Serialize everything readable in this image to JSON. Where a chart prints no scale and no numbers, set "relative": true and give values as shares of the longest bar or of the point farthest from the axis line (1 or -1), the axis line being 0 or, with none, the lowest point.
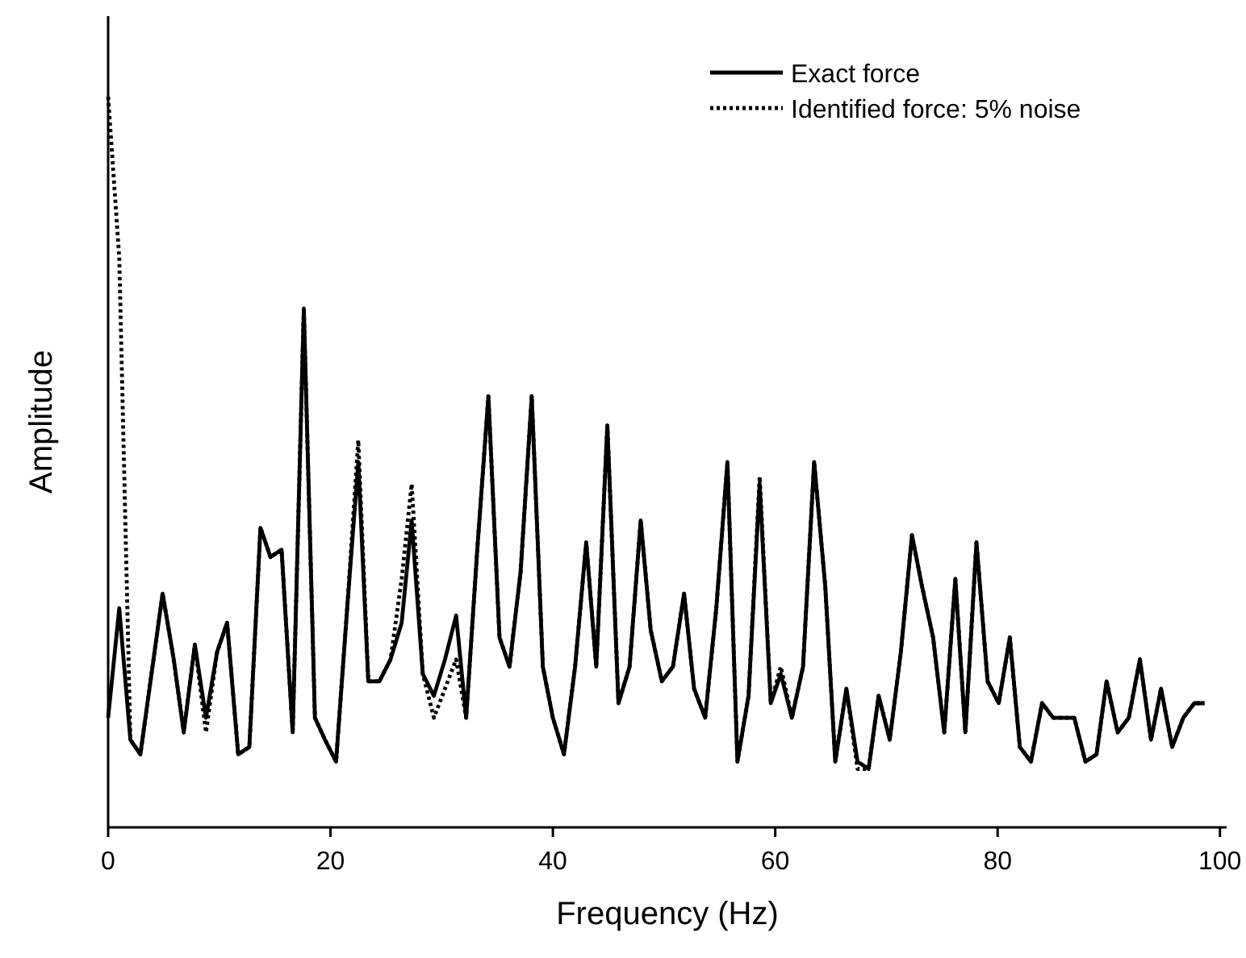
{
  "chart_data": {
    "type": "line",
    "relative": true,
    "xlabel": "Frequency (Hz)",
    "ylabel": "Amplitude",
    "xlim": [
      0,
      100.6
    ],
    "xticks": [
      0,
      20,
      40,
      60,
      80,
      100
    ],
    "tick_labels": "x",
    "legend": "top right",
    "grid": false,
    "x": [
      0,
      1,
      2,
      2.9,
      3.9,
      4.9,
      5.9,
      6.8,
      7.8,
      8.8,
      9.8,
      10.7,
      11.7,
      12.7,
      13.7,
      14.6,
      15.6,
      16.6,
      17.6,
      18.6,
      19.5,
      20.5,
      21.5,
      22.5,
      23.4,
      24.4,
      25.4,
      26.4,
      27.3,
      28.3,
      29.3,
      30.3,
      31.3,
      32.2,
      33.2,
      34.2,
      35.2,
      36.1,
      37.1,
      38.1,
      39.1,
      40,
      41,
      42,
      43,
      43.9,
      44.9,
      45.9,
      46.9,
      47.9,
      48.8,
      49.8,
      50.8,
      51.8,
      52.7,
      53.7,
      54.7,
      55.7,
      56.6,
      57.6,
      58.6,
      59.6,
      60.5,
      61.5,
      62.5,
      63.5,
      64.5,
      65.4,
      66.4,
      67.4,
      68.4,
      69.3,
      70.3,
      71.3,
      72.3,
      73.2,
      74.2,
      75.2,
      76.2,
      77.1,
      78.1,
      79.1,
      80.1,
      81.1,
      82,
      83,
      84,
      85,
      85.9,
      86.9,
      87.9,
      88.9,
      89.8,
      90.8,
      91.8,
      92.8,
      93.8,
      94.7,
      95.7,
      96.7,
      97.7,
      98.6
    ],
    "series": [
      {
        "name": "Exact force",
        "color": "#000000",
        "line_style": "solid",
        "values": [
          0.15,
          0.3,
          0.12,
          0.1,
          0.21,
          0.32,
          0.23,
          0.13,
          0.25,
          0.15,
          0.24,
          0.28,
          0.1,
          0.11,
          0.41,
          0.37,
          0.38,
          0.13,
          0.71,
          0.15,
          0.12,
          0.09,
          0.3,
          0.5,
          0.2,
          0.2,
          0.23,
          0.28,
          0.42,
          0.21,
          0.18,
          0.23,
          0.29,
          0.15,
          0.38,
          0.59,
          0.26,
          0.22,
          0.35,
          0.59,
          0.22,
          0.15,
          0.1,
          0.22,
          0.39,
          0.22,
          0.55,
          0.17,
          0.22,
          0.42,
          0.27,
          0.2,
          0.22,
          0.32,
          0.19,
          0.15,
          0.3,
          0.5,
          0.09,
          0.18,
          0.47,
          0.17,
          0.21,
          0.15,
          0.22,
          0.5,
          0.33,
          0.09,
          0.19,
          0.09,
          0.08,
          0.18,
          0.12,
          0.24,
          0.4,
          0.33,
          0.26,
          0.13,
          0.34,
          0.13,
          0.39,
          0.2,
          0.17,
          0.26,
          0.11,
          0.09,
          0.17,
          0.15,
          0.15,
          0.15,
          0.09,
          0.1,
          0.2,
          0.13,
          0.15,
          0.23,
          0.12,
          0.19,
          0.11,
          0.15,
          0.17,
          0.17
        ]
      },
      {
        "name": "Identified force: 5% noise",
        "color": "#000000",
        "line_style": "dotted",
        "values": [
          1.0,
          0.78,
          0.12,
          0.1,
          0.21,
          0.32,
          0.23,
          0.13,
          0.25,
          0.13,
          0.24,
          0.28,
          0.1,
          0.11,
          0.41,
          0.37,
          0.38,
          0.13,
          0.71,
          0.15,
          0.12,
          0.09,
          0.3,
          0.53,
          0.2,
          0.2,
          0.23,
          0.34,
          0.47,
          0.21,
          0.15,
          0.19,
          0.23,
          0.15,
          0.38,
          0.59,
          0.26,
          0.22,
          0.35,
          0.59,
          0.22,
          0.15,
          0.1,
          0.22,
          0.39,
          0.22,
          0.55,
          0.17,
          0.22,
          0.42,
          0.27,
          0.2,
          0.22,
          0.32,
          0.19,
          0.15,
          0.3,
          0.5,
          0.09,
          0.18,
          0.48,
          0.17,
          0.22,
          0.15,
          0.22,
          0.5,
          0.33,
          0.09,
          0.19,
          0.08,
          0.08,
          0.18,
          0.12,
          0.24,
          0.4,
          0.33,
          0.26,
          0.13,
          0.34,
          0.13,
          0.39,
          0.2,
          0.17,
          0.26,
          0.11,
          0.09,
          0.17,
          0.15,
          0.15,
          0.15,
          0.09,
          0.1,
          0.2,
          0.13,
          0.15,
          0.23,
          0.12,
          0.19,
          0.11,
          0.15,
          0.17,
          0.17
        ]
      }
    ]
  }
}
